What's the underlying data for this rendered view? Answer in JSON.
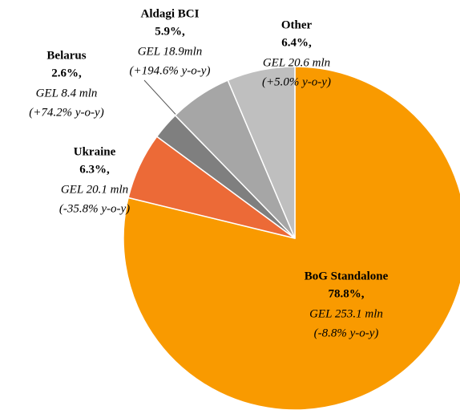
{
  "chart_data": {
    "type": "pie",
    "categories": [
      "BoG Standalone",
      "Ukraine",
      "Belarus",
      "Aldagi BCI",
      "Other"
    ],
    "values": [
      78.8,
      6.3,
      2.6,
      5.9,
      6.4
    ],
    "value_labels": [
      "78.8%,",
      "6.3%,",
      "2.6%,",
      "5.9%,",
      "6.4%,"
    ],
    "amount_labels": [
      "GEL 253.1 mln",
      "GEL 20.1  mln",
      "GEL 8.4 mln",
      "GEL 18.9mln",
      "GEL 20.6 mln"
    ],
    "change_labels": [
      "(-8.8%  y-o-y)",
      "(-35.8% y-o-y)",
      "(+74.2% y-o-y)",
      "(+194.6% y-o-y)",
      "(+5.0% y-o-y)"
    ],
    "colors": [
      "#f99a00",
      "#ec6a37",
      "#7f7f7f",
      "#a6a6a6",
      "#bfbfbf"
    ]
  }
}
